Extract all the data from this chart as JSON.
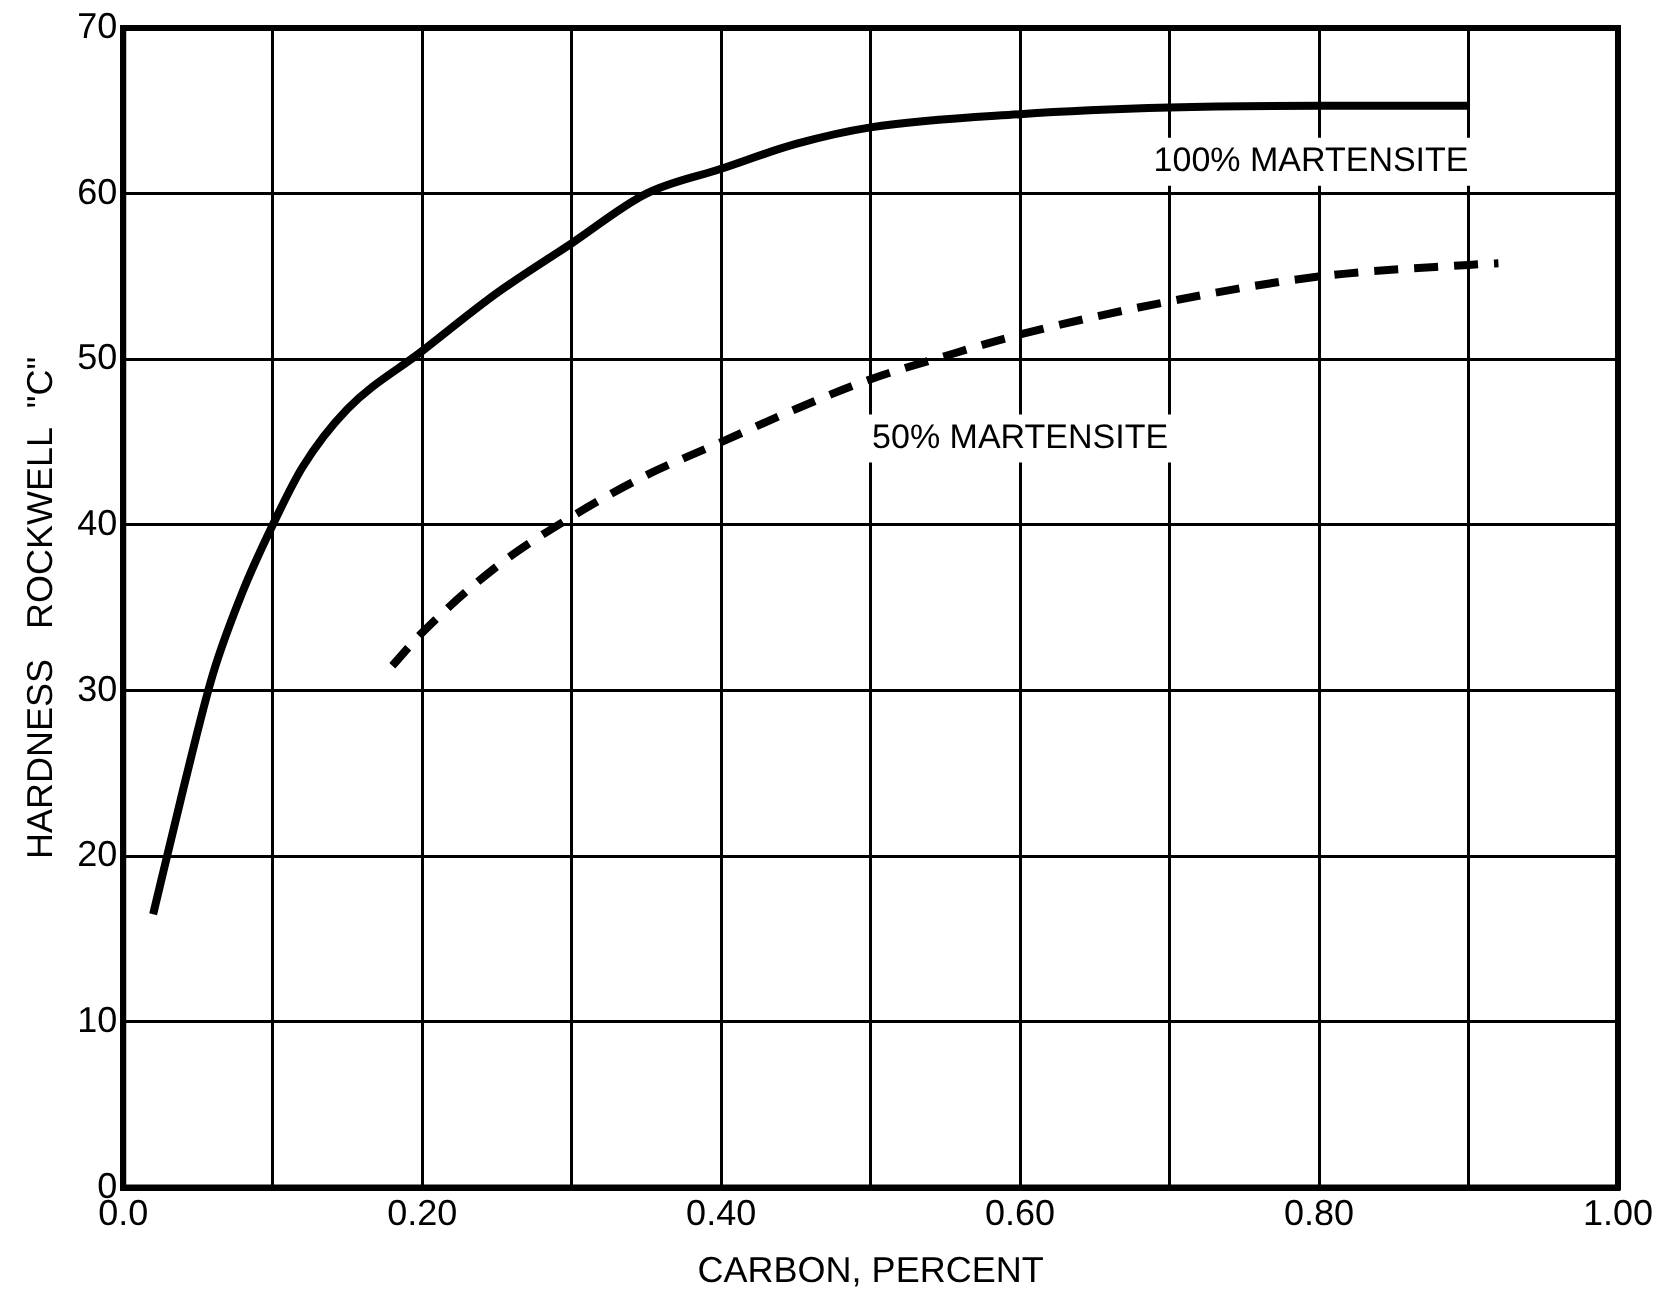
{
  "chart_data": {
    "type": "line",
    "xlabel": "CARBON, PERCENT",
    "ylabel": "HARDNESS   ROCKWELL  \"C\"",
    "xlim": [
      0,
      1
    ],
    "ylim": [
      0,
      70
    ],
    "xticks": [
      {
        "value": 0,
        "label": "0.0"
      },
      {
        "value": 0.1,
        "label": null
      },
      {
        "value": 0.2,
        "label": "0.20"
      },
      {
        "value": 0.3,
        "label": null
      },
      {
        "value": 0.4,
        "label": "0.40"
      },
      {
        "value": 0.5,
        "label": null
      },
      {
        "value": 0.6,
        "label": "0.60"
      },
      {
        "value": 0.7,
        "label": null
      },
      {
        "value": 0.8,
        "label": "0.80"
      },
      {
        "value": 0.9,
        "label": null
      },
      {
        "value": 1,
        "label": "1.00"
      }
    ],
    "yticks": [
      0,
      10,
      20,
      30,
      40,
      50,
      60,
      70
    ],
    "grid": true,
    "legend": false,
    "marker": "none",
    "series": [
      {
        "name": "100% MARTENSITE",
        "color": "#000000",
        "line_style": "solid",
        "x": [
          0.02,
          0.04,
          0.06,
          0.08,
          0.1,
          0.12,
          0.15,
          0.2,
          0.25,
          0.3,
          0.35,
          0.4,
          0.45,
          0.5,
          0.6,
          0.7,
          0.8,
          0.9
        ],
        "values": [
          16.5,
          24,
          31,
          36,
          40,
          43.5,
          47,
          50.5,
          54,
          57,
          60,
          61.5,
          63,
          64,
          64.8,
          65.2,
          65.3,
          65.3
        ]
      },
      {
        "name": "50% MARTENSITE",
        "color": "#000000",
        "line_style": "dashed",
        "x": [
          0.18,
          0.2,
          0.25,
          0.3,
          0.35,
          0.4,
          0.45,
          0.5,
          0.55,
          0.6,
          0.7,
          0.8,
          0.9,
          0.92
        ],
        "values": [
          31.5,
          33.5,
          37.5,
          40.5,
          43,
          45,
          47,
          48.8,
          50.2,
          51.5,
          53.5,
          55,
          55.7,
          55.8
        ]
      }
    ]
  }
}
